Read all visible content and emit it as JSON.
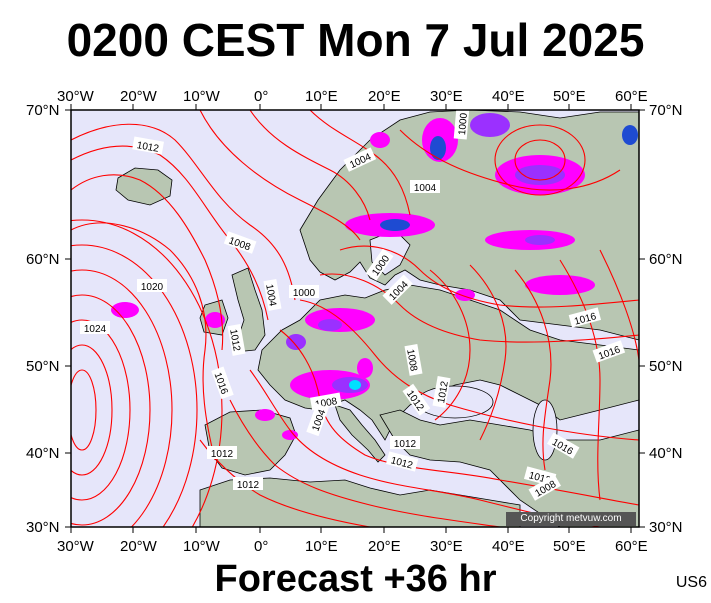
{
  "title": "0200 CEST Mon 7 Jul 2025",
  "footer": "Forecast +36 hr",
  "code": "US6",
  "copyright": "Copyright metvuw.com",
  "axes": {
    "lon_ticks": [
      "30°W",
      "20°W",
      "10°W",
      "0°",
      "10°E",
      "20°E",
      "30°E",
      "40°E",
      "50°E",
      "60°E"
    ],
    "lat_ticks": [
      "70°N",
      "60°N",
      "50°N",
      "40°N",
      "30°N"
    ]
  },
  "colors": {
    "ocean": "#e6e6fa",
    "land": "#b8c6b2",
    "isobar": "#ff0000",
    "precip_light": "#ff00ff",
    "precip_medium": "#9b30ff",
    "precip_heavy": "#1e4bd2",
    "precip_extreme": "#00e0ff"
  },
  "isobar_labels": [
    {
      "text": "1012"
    },
    {
      "text": "1004"
    },
    {
      "text": "1004"
    },
    {
      "text": "1000"
    },
    {
      "text": "1008"
    },
    {
      "text": "1000"
    },
    {
      "text": "1004"
    },
    {
      "text": "1020"
    },
    {
      "text": "1000"
    },
    {
      "text": "1004"
    },
    {
      "text": "1024"
    },
    {
      "text": "1012"
    },
    {
      "text": "1016"
    },
    {
      "text": "1008"
    },
    {
      "text": "1016"
    },
    {
      "text": "1016"
    },
    {
      "text": "1008"
    },
    {
      "text": "1012"
    },
    {
      "text": "1012"
    },
    {
      "text": "1004"
    },
    {
      "text": "1012"
    },
    {
      "text": "1012"
    },
    {
      "text": "1012"
    },
    {
      "text": "1016"
    },
    {
      "text": "1012"
    },
    {
      "text": "1012"
    },
    {
      "text": "1008"
    }
  ]
}
